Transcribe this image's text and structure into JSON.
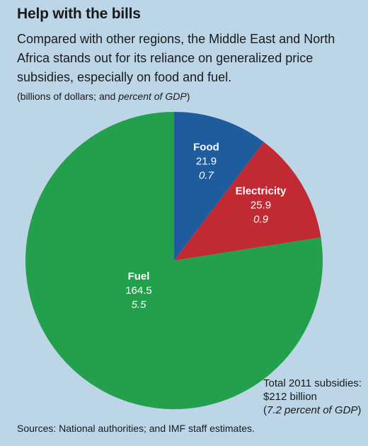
{
  "chart_data": {
    "type": "pie",
    "title": "Help with the bills",
    "subtitle": "Compared with other regions, the Middle East and North Africa stands out for its reliance on generalized price subsidies, especially on food and fuel.",
    "units_prefix": "(billions of dollars; and ",
    "units_italic": "percent of GDP",
    "units_suffix": ")",
    "slices": [
      {
        "name": "Food",
        "value": 21.9,
        "value_label": "21.9",
        "percent_gdp": "0.7",
        "color": "#1e5c9e"
      },
      {
        "name": "Electricity",
        "value": 25.9,
        "value_label": "25.9",
        "percent_gdp": "0.9",
        "color": "#c22a33"
      },
      {
        "name": "Fuel",
        "value": 164.5,
        "value_label": "164.5",
        "percent_gdp": "5.5",
        "color": "#22a04b"
      }
    ],
    "total": {
      "line1": "Total 2011 subsidies:",
      "line2": "$212 billion",
      "line3_prefix": "(",
      "line3_italic": "7.2 percent of GDP",
      "line3_suffix": ")"
    },
    "source": "Sources: National authorities; and IMF staff estimates."
  }
}
